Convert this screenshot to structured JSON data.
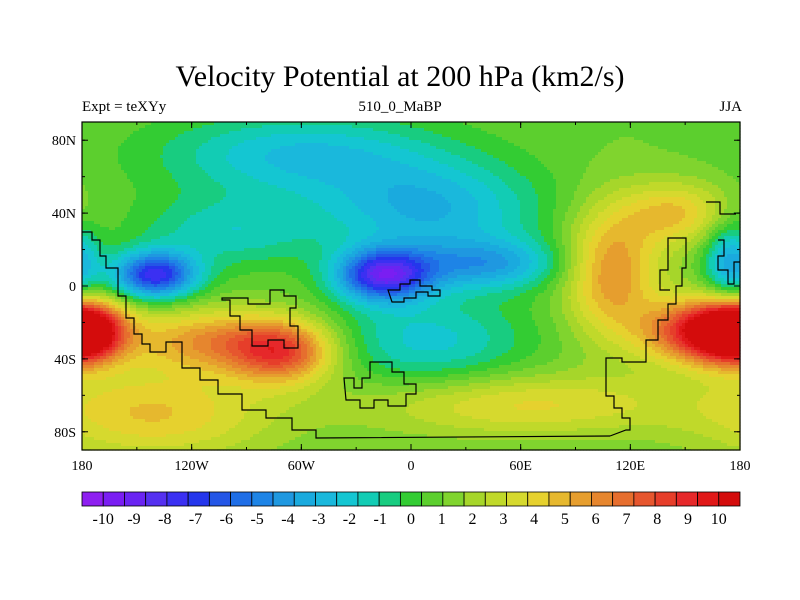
{
  "chart_data": {
    "type": "heatmap",
    "title": "Velocity Potential at 200 hPa (km2/s)",
    "subtitle_left": "Expt = teXYy",
    "subtitle_center": "510_0_MaBP",
    "subtitle_right": "JJA",
    "xlim": [
      -180,
      180
    ],
    "ylim": [
      -90,
      90
    ],
    "x_ticks": [
      {
        "value": -180,
        "label": "180"
      },
      {
        "value": -120,
        "label": "120W"
      },
      {
        "value": -60,
        "label": "60W"
      },
      {
        "value": 0,
        "label": "0"
      },
      {
        "value": 60,
        "label": "60E"
      },
      {
        "value": 120,
        "label": "120E"
      },
      {
        "value": 180,
        "label": "180"
      }
    ],
    "y_ticks": [
      {
        "value": 80,
        "label": "80N"
      },
      {
        "value": 40,
        "label": "40N"
      },
      {
        "value": 0,
        "label": "0"
      },
      {
        "value": -40,
        "label": "40S"
      },
      {
        "value": -80,
        "label": "80S"
      }
    ],
    "colorbar": {
      "levels": [
        -10,
        -9,
        -8,
        -7,
        -6,
        -5,
        -4,
        -3,
        -2,
        -1,
        0,
        1,
        2,
        3,
        4,
        5,
        6,
        7,
        8,
        9,
        10
      ],
      "colors": [
        "#8e1ff0",
        "#7a1ef2",
        "#6a24f2",
        "#5530f0",
        "#3b30f2",
        "#2536ec",
        "#2456e6",
        "#1f6ee6",
        "#1e84e6",
        "#1f98e0",
        "#1aaade",
        "#1ab8dc",
        "#14c6d2",
        "#12ccb4",
        "#18cc80",
        "#33cc33",
        "#5ccf2e",
        "#80d42e",
        "#a6d62a",
        "#c0d92a",
        "#d6d92e",
        "#e6d12e",
        "#e6b82e",
        "#e69e2e",
        "#e6862e",
        "#e66e2e",
        "#e6562e",
        "#e63e2a",
        "#e6282a",
        "#e01818",
        "#d40c0c"
      ],
      "labels": [
        "-10",
        "-9",
        "-8",
        "-7",
        "-6",
        "-5",
        "-4",
        "-3",
        "-2",
        "-1",
        "0",
        "1",
        "2",
        "3",
        "4",
        "5",
        "6",
        "7",
        "8",
        "9",
        "10"
      ]
    },
    "field": {
      "background": 1.0,
      "features": [
        {
          "lon": -140,
          "lat": 6,
          "amp": -8.5,
          "sx": 16,
          "sy": 9
        },
        {
          "lon": -15,
          "lat": 6,
          "amp": -9.0,
          "sx": 18,
          "sy": 10
        },
        {
          "lon": -60,
          "lat": 72,
          "amp": -3.5,
          "sx": 55,
          "sy": 16
        },
        {
          "lon": 10,
          "lat": 42,
          "amp": -4.0,
          "sx": 42,
          "sy": 18
        },
        {
          "lon": 40,
          "lat": 12,
          "amp": -4.5,
          "sx": 30,
          "sy": 10
        },
        {
          "lon": 10,
          "lat": -30,
          "amp": -3.0,
          "sx": 38,
          "sy": 18
        },
        {
          "lon": -100,
          "lat": 30,
          "amp": -2.5,
          "sx": 35,
          "sy": 14
        },
        {
          "lon": 165,
          "lat": -25,
          "amp": 10.0,
          "sx": 24,
          "sy": 12
        },
        {
          "lon": -180,
          "lat": -25,
          "amp": 8.5,
          "sx": 14,
          "sy": 11
        },
        {
          "lon": -70,
          "lat": -36,
          "amp": 6.5,
          "sx": 20,
          "sy": 12
        },
        {
          "lon": -110,
          "lat": -30,
          "amp": 4.5,
          "sx": 30,
          "sy": 12
        },
        {
          "lon": 110,
          "lat": 8,
          "amp": 5.0,
          "sx": 18,
          "sy": 25
        },
        {
          "lon": 60,
          "lat": -65,
          "amp": 3.0,
          "sx": 60,
          "sy": 12
        },
        {
          "lon": -140,
          "lat": -70,
          "amp": 3.5,
          "sx": 45,
          "sy": 18
        },
        {
          "lon": 145,
          "lat": 40,
          "amp": 3.5,
          "sx": 20,
          "sy": 12
        },
        {
          "lon": 175,
          "lat": 12,
          "amp": -4.5,
          "sx": 10,
          "sy": 15
        }
      ]
    }
  }
}
